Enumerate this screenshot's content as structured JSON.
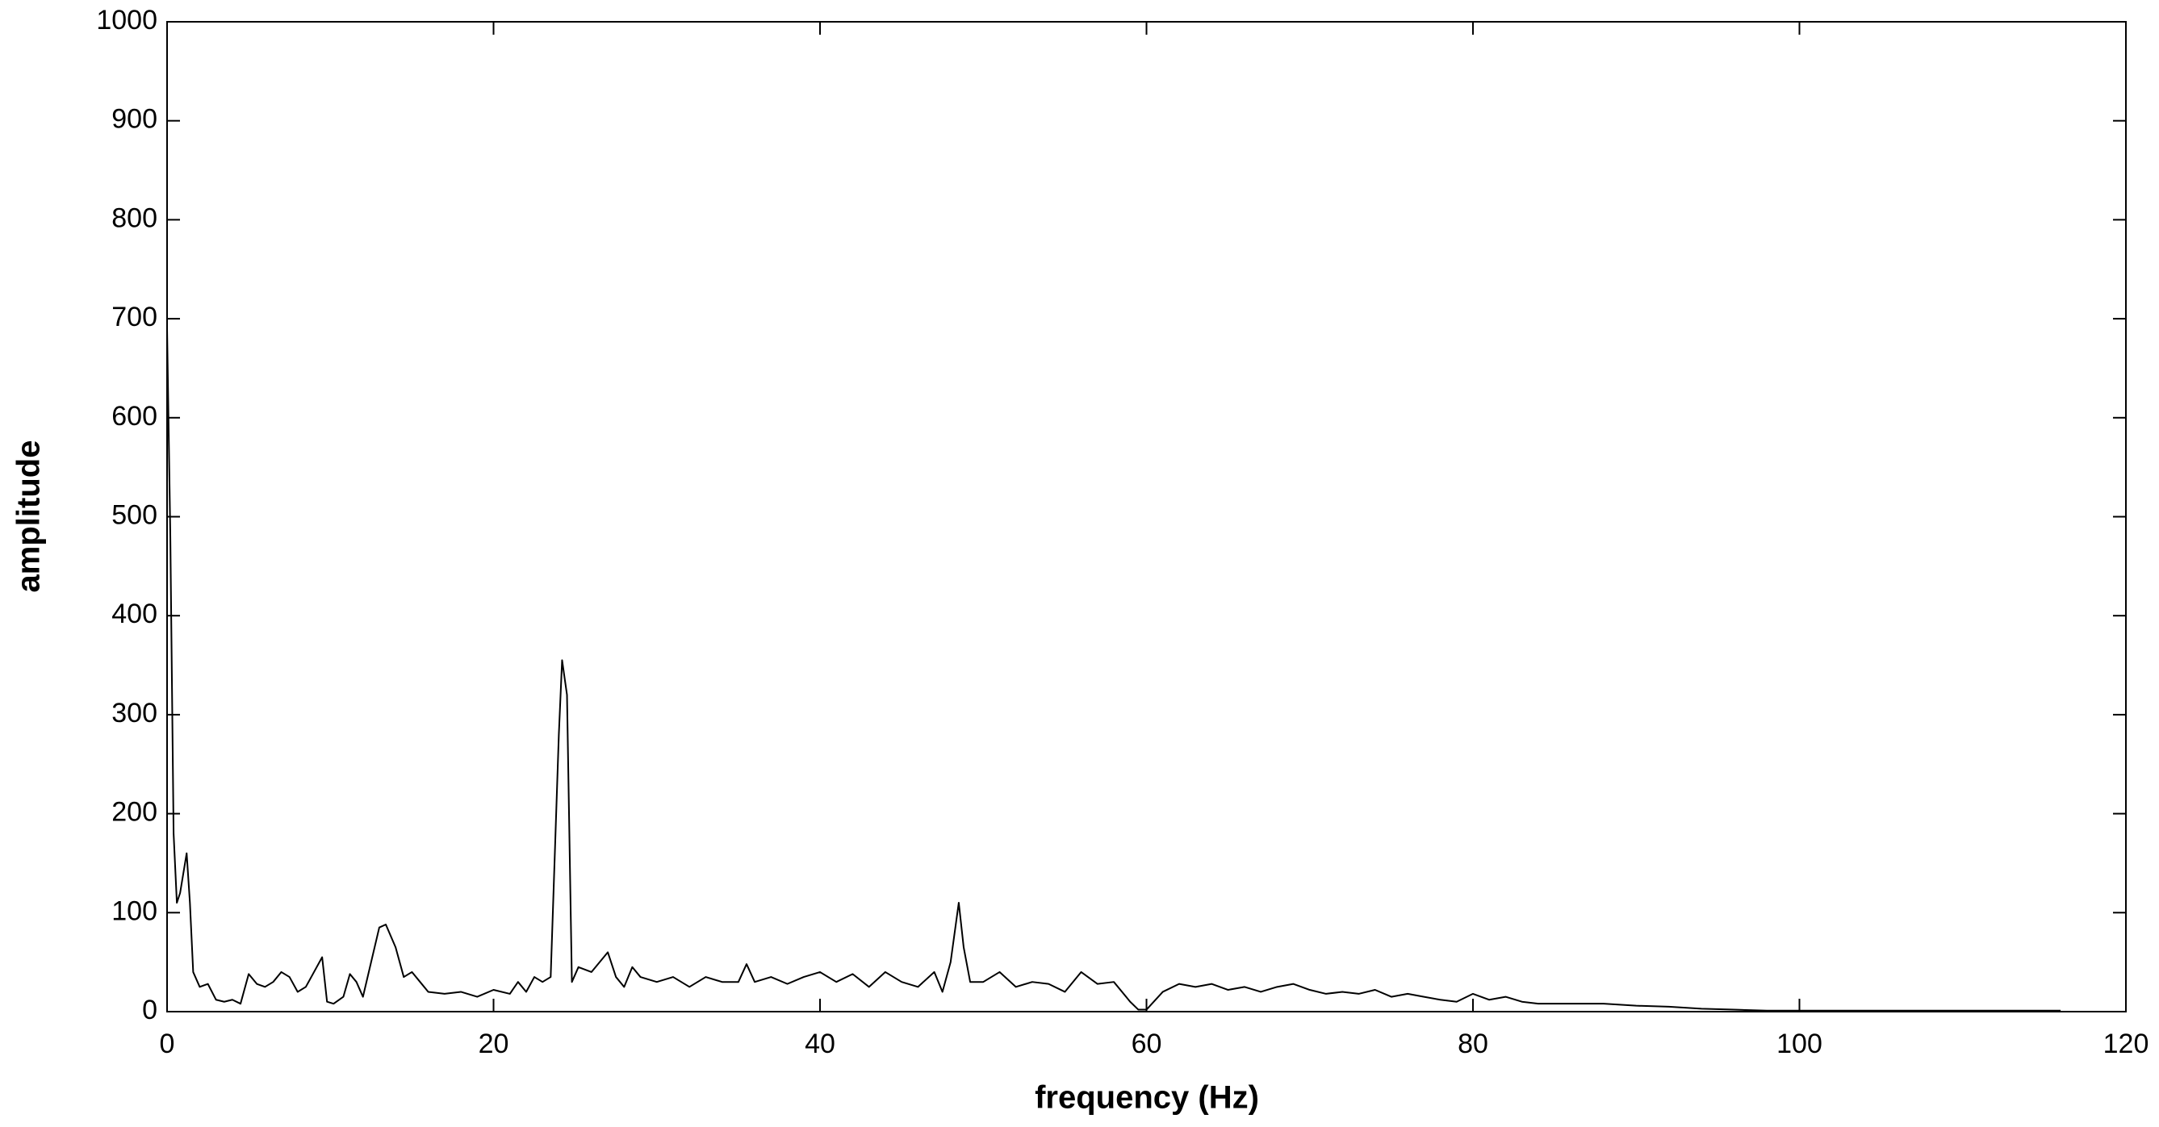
{
  "chart_data": {
    "type": "line",
    "x_label": "frequency (Hz)",
    "y_label": "amplitude",
    "x": [
      0,
      0.2,
      0.4,
      0.6,
      0.8,
      1.0,
      1.2,
      1.4,
      1.6,
      2,
      2.5,
      3,
      3.5,
      4,
      4.5,
      5,
      5.5,
      6,
      6.5,
      7,
      7.5,
      8,
      8.5,
      9,
      9.5,
      9.8,
      10.2,
      10.8,
      11.2,
      11.6,
      12,
      12.5,
      13,
      13.4,
      14,
      14.5,
      15,
      15.5,
      16,
      17,
      18,
      19,
      20,
      21,
      21.5,
      22,
      22.5,
      23,
      23.5,
      24,
      24.2,
      24.5,
      24.8,
      25.2,
      26,
      27,
      27.5,
      28,
      28.5,
      29,
      30,
      31,
      32,
      33,
      34,
      35,
      35.5,
      36,
      37,
      38,
      39,
      40,
      41,
      42,
      43,
      44,
      45,
      46,
      47,
      47.5,
      48,
      48.5,
      48.8,
      49.2,
      50,
      51,
      52,
      53,
      54,
      55,
      56,
      57,
      58,
      59,
      59.5,
      60,
      61,
      62,
      63,
      64,
      65,
      66,
      67,
      68,
      69,
      70,
      71,
      72,
      73,
      74,
      75,
      76,
      77,
      78,
      79,
      80,
      81,
      82,
      83,
      84,
      85,
      86,
      88,
      90,
      92,
      94,
      96,
      98,
      100,
      105,
      110,
      116
    ],
    "series": [
      {
        "color": "#000000",
        "values": [
          690,
          480,
          180,
          110,
          120,
          140,
          160,
          110,
          40,
          25,
          28,
          12,
          10,
          12,
          8,
          38,
          28,
          25,
          30,
          40,
          35,
          20,
          25,
          40,
          55,
          10,
          8,
          15,
          38,
          30,
          15,
          50,
          85,
          88,
          65,
          35,
          40,
          30,
          20,
          18,
          20,
          15,
          22,
          18,
          30,
          20,
          35,
          30,
          35,
          280,
          355,
          320,
          30,
          45,
          40,
          60,
          35,
          25,
          45,
          35,
          30,
          35,
          25,
          35,
          30,
          30,
          48,
          30,
          35,
          28,
          35,
          40,
          30,
          38,
          25,
          40,
          30,
          25,
          40,
          20,
          50,
          110,
          65,
          30,
          30,
          40,
          25,
          30,
          28,
          20,
          40,
          28,
          30,
          10,
          2,
          2,
          20,
          28,
          25,
          28,
          22,
          25,
          20,
          25,
          28,
          22,
          18,
          20,
          18,
          22,
          15,
          18,
          15,
          12,
          10,
          18,
          12,
          15,
          10,
          8,
          8,
          8,
          8,
          6,
          5,
          3,
          2,
          1,
          1,
          1,
          1,
          1
        ]
      }
    ],
    "xlim": [
      0,
      120
    ],
    "xticks": [
      0,
      20,
      40,
      60,
      80,
      100,
      120
    ],
    "ylim": [
      0,
      1000
    ],
    "yticks": [
      0,
      100,
      200,
      300,
      400,
      500,
      600,
      700,
      800,
      900,
      1000
    ],
    "grid": false
  }
}
